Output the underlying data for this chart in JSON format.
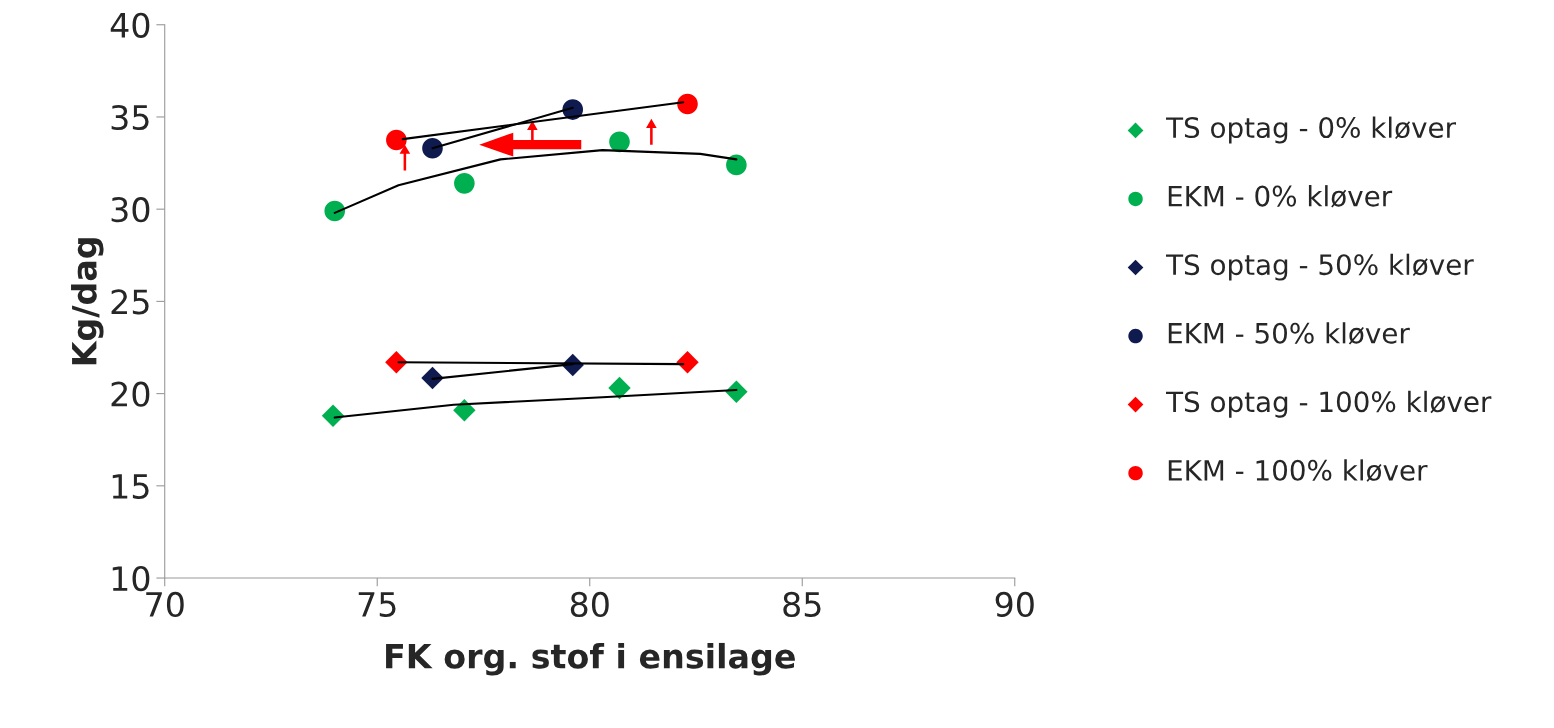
{
  "chart_data": {
    "type": "scatter",
    "xlabel": "FK org. stof i ensilage",
    "ylabel": "Kg/dag",
    "xlim": [
      70,
      90
    ],
    "xticks": [
      70,
      75,
      80,
      85,
      90
    ],
    "ylim": [
      10,
      40
    ],
    "yticks": [
      10,
      15,
      20,
      25,
      30,
      35,
      40
    ],
    "grid": false,
    "legend": "right",
    "series": [
      {
        "name": "TS optag - 0% kløver",
        "color": "#00b050",
        "marker": "diamond",
        "x": [
          73.96,
          77.05,
          80.7,
          83.45
        ],
        "values": [
          18.8,
          19.1,
          20.3,
          20.1
        ]
      },
      {
        "name": "EKM - 0% kløver",
        "color": "#00b050",
        "marker": "circle",
        "x": [
          74.0,
          77.05,
          80.7,
          83.45
        ],
        "values": [
          29.9,
          31.4,
          33.65,
          32.4
        ]
      },
      {
        "name": "TS optag - 50% kløver",
        "color": "#0f1a4f",
        "marker": "diamond",
        "x": [
          76.3,
          79.6
        ],
        "values": [
          20.85,
          21.55
        ]
      },
      {
        "name": "EKM - 50% kløver",
        "color": "#0f1a4f",
        "marker": "circle",
        "x": [
          76.3,
          79.6
        ],
        "values": [
          33.3,
          35.4
        ]
      },
      {
        "name": "TS optag - 100% kløver",
        "color": "#ff0000",
        "marker": "diamond",
        "x": [
          75.45,
          82.3
        ],
        "values": [
          21.7,
          21.7
        ]
      },
      {
        "name": "EKM - 100% kløver",
        "color": "#ff0000",
        "marker": "circle",
        "x": [
          75.45,
          82.3
        ],
        "values": [
          33.75,
          35.7
        ]
      },
      {
        "type": "line",
        "color": "#000000",
        "x": [
          74.0,
          75.5,
          77.9,
          80.3,
          82.6,
          83.45
        ],
        "values": [
          29.8,
          31.3,
          32.7,
          33.2,
          33.0,
          32.7
        ]
      },
      {
        "type": "line",
        "color": "#000000",
        "x": [
          74.0,
          76.8,
          80.3,
          83.45
        ],
        "values": [
          18.7,
          19.4,
          19.8,
          20.2
        ]
      },
      {
        "type": "line",
        "color": "#000000",
        "x": [
          76.3,
          79.6
        ],
        "values": [
          33.3,
          35.5
        ]
      },
      {
        "type": "line",
        "color": "#000000",
        "x": [
          76.3,
          79.6
        ],
        "values": [
          20.8,
          21.6
        ]
      },
      {
        "type": "line",
        "color": "#000000",
        "x": [
          75.6,
          82.2
        ],
        "values": [
          33.8,
          35.8
        ]
      },
      {
        "type": "line",
        "color": "#000000",
        "x": [
          75.5,
          82.2
        ],
        "values": [
          21.7,
          21.6
        ]
      }
    ]
  }
}
